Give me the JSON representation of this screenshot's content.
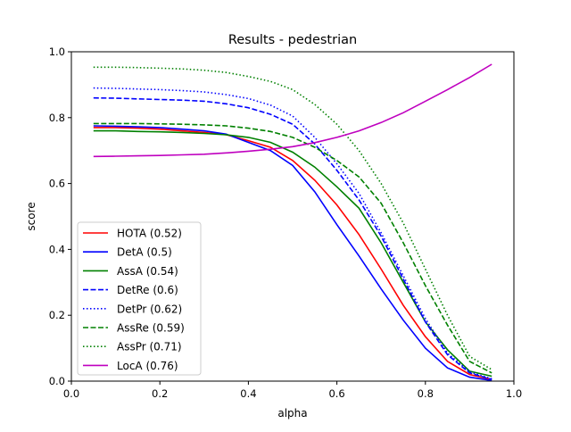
{
  "chart_data": {
    "type": "line",
    "title": "Results - pedestrian",
    "xlabel": "alpha",
    "ylabel": "score",
    "xlim": [
      0,
      1
    ],
    "ylim": [
      0,
      1
    ],
    "xticks": [
      "0.0",
      "0.2",
      "0.4",
      "0.6",
      "0.8",
      "1.0"
    ],
    "yticks": [
      "0.0",
      "0.2",
      "0.4",
      "0.6",
      "0.8",
      "1.0"
    ],
    "grid": false,
    "legend_position": "lower-left",
    "x": [
      0.05,
      0.1,
      0.15,
      0.2,
      0.25,
      0.3,
      0.35,
      0.4,
      0.45,
      0.5,
      0.55,
      0.6,
      0.65,
      0.7,
      0.75,
      0.8,
      0.85,
      0.9,
      0.95
    ],
    "series": [
      {
        "name": "HOTA (0.52)",
        "color": "#ff0000",
        "style": "solid",
        "values": [
          0.77,
          0.77,
          0.768,
          0.765,
          0.76,
          0.755,
          0.748,
          0.73,
          0.71,
          0.67,
          0.61,
          0.535,
          0.445,
          0.34,
          0.23,
          0.135,
          0.06,
          0.02,
          0.005
        ]
      },
      {
        "name": "DetA (0.5)",
        "color": "#0000ff",
        "style": "solid",
        "values": [
          0.775,
          0.774,
          0.772,
          0.77,
          0.765,
          0.76,
          0.75,
          0.725,
          0.7,
          0.655,
          0.575,
          0.475,
          0.38,
          0.28,
          0.185,
          0.1,
          0.04,
          0.012,
          0.002
        ]
      },
      {
        "name": "AssA (0.54)",
        "color": "#008000",
        "style": "solid",
        "values": [
          0.76,
          0.76,
          0.758,
          0.757,
          0.755,
          0.752,
          0.748,
          0.74,
          0.725,
          0.695,
          0.65,
          0.59,
          0.525,
          0.42,
          0.3,
          0.18,
          0.095,
          0.03,
          0.015
        ]
      },
      {
        "name": "DetRe (0.6)",
        "color": "#0000ff",
        "style": "dashed",
        "values": [
          0.86,
          0.859,
          0.857,
          0.855,
          0.853,
          0.85,
          0.842,
          0.83,
          0.81,
          0.78,
          0.72,
          0.64,
          0.55,
          0.44,
          0.31,
          0.18,
          0.08,
          0.025,
          0.005
        ]
      },
      {
        "name": "DetPr (0.62)",
        "color": "#0000ff",
        "style": "dotted",
        "values": [
          0.89,
          0.889,
          0.887,
          0.885,
          0.882,
          0.878,
          0.87,
          0.858,
          0.838,
          0.805,
          0.74,
          0.66,
          0.57,
          0.45,
          0.32,
          0.19,
          0.085,
          0.028,
          0.007
        ]
      },
      {
        "name": "AssRe (0.59)",
        "color": "#008000",
        "style": "dashed",
        "values": [
          0.782,
          0.782,
          0.782,
          0.781,
          0.78,
          0.778,
          0.775,
          0.768,
          0.758,
          0.74,
          0.71,
          0.67,
          0.62,
          0.54,
          0.42,
          0.29,
          0.17,
          0.06,
          0.025
        ]
      },
      {
        "name": "AssPr (0.71)",
        "color": "#008000",
        "style": "dotted",
        "values": [
          0.953,
          0.953,
          0.952,
          0.95,
          0.948,
          0.944,
          0.937,
          0.925,
          0.91,
          0.885,
          0.84,
          0.78,
          0.7,
          0.6,
          0.48,
          0.34,
          0.2,
          0.075,
          0.035
        ]
      },
      {
        "name": "LocA (0.76)",
        "color": "#bf00bf",
        "style": "solid",
        "values": [
          0.682,
          0.683,
          0.684,
          0.685,
          0.687,
          0.689,
          0.693,
          0.698,
          0.704,
          0.712,
          0.724,
          0.74,
          0.76,
          0.785,
          0.815,
          0.85,
          0.885,
          0.922,
          0.962
        ]
      }
    ]
  }
}
